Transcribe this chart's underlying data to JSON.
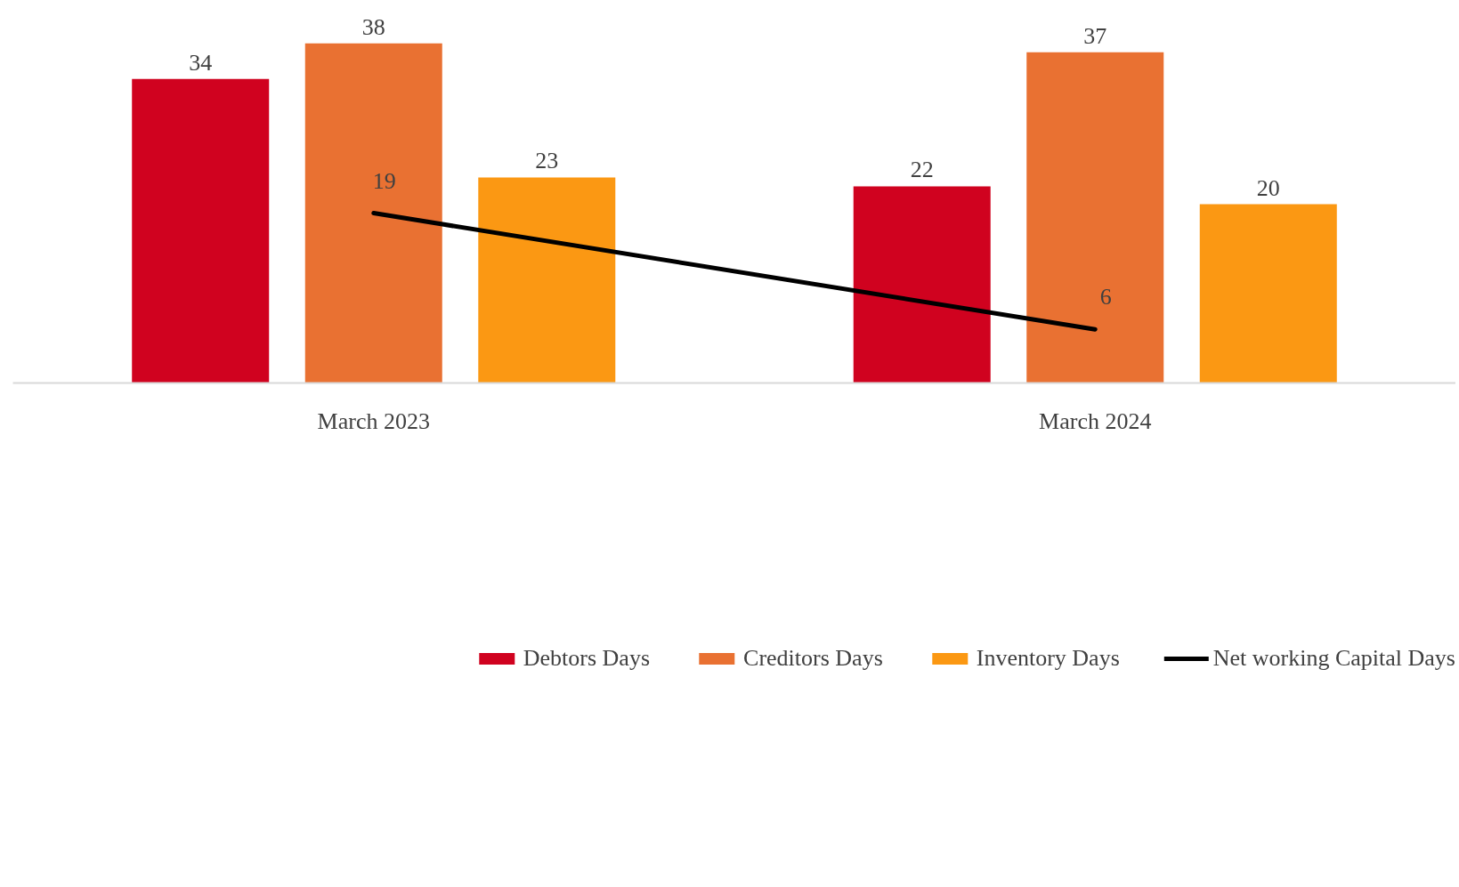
{
  "chart_data": {
    "type": "bar",
    "categories": [
      "March 2023",
      "March 2024"
    ],
    "series": [
      {
        "name": "Debtors Days",
        "color": "#d0021f",
        "values": [
          34,
          22
        ]
      },
      {
        "name": "Creditors Days",
        "color": "#e97132",
        "values": [
          38,
          37
        ]
      },
      {
        "name": "Inventory Days",
        "color": "#fb9813",
        "values": [
          23,
          20
        ]
      },
      {
        "name": "Net working Capital Days",
        "type": "line",
        "color": "#000000",
        "values": [
          19,
          6
        ]
      }
    ],
    "data_labels": true,
    "legend": "bottom",
    "grid": false,
    "tick_labels": "x"
  }
}
